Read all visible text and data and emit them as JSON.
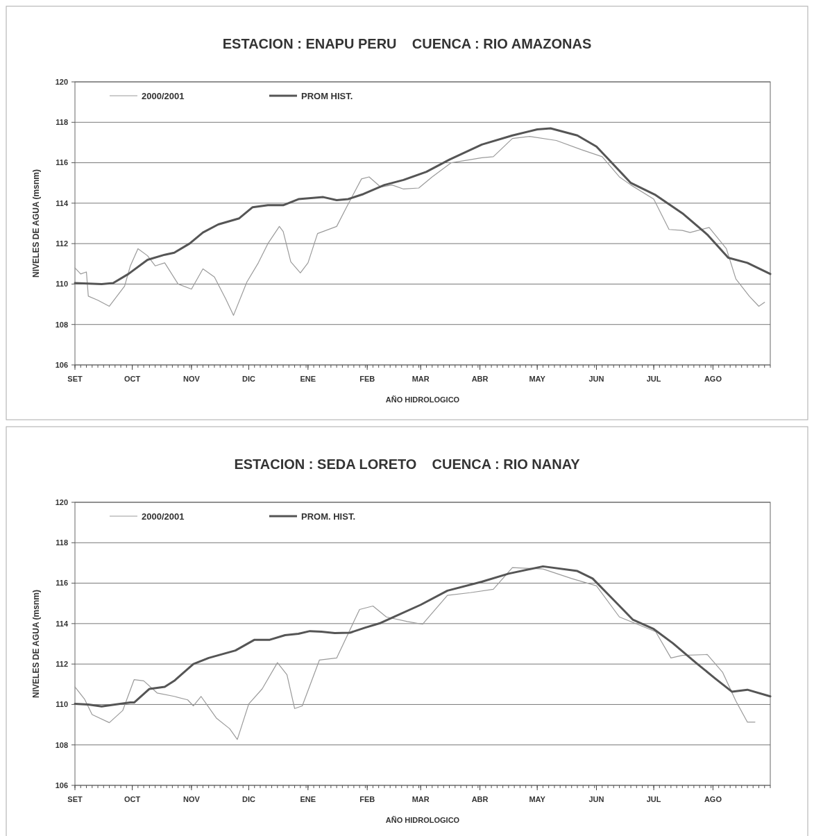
{
  "chart_data": [
    {
      "type": "line",
      "title": "ESTACION : ENAPU PERU    CUENCA : RIO AMAZONAS",
      "xlabel": "AÑO HIDROLOGICO",
      "ylabel": "NIVELES DE AGUA (msnm)",
      "xlim": [
        "2000-09-01",
        "2001-08-31"
      ],
      "xticks": [
        {
          "value": "2000-09-01",
          "label": "SET"
        },
        {
          "value": "2000-10-01",
          "label": "OCT"
        },
        {
          "value": "2000-11-01",
          "label": "NOV"
        },
        {
          "value": "2000-12-01",
          "label": "DIC"
        },
        {
          "value": "2001-01-01",
          "label": "ENE"
        },
        {
          "value": "2001-02-01",
          "label": "FEB"
        },
        {
          "value": "2001-03-01",
          "label": "MAR"
        },
        {
          "value": "2001-04-01",
          "label": "ABR"
        },
        {
          "value": "2001-05-01",
          "label": "MAY"
        },
        {
          "value": "2001-06-01",
          "label": "JUN"
        },
        {
          "value": "2001-07-01",
          "label": "JUL"
        },
        {
          "value": "2001-08-01",
          "label": "AGO"
        }
      ],
      "ylim": [
        106,
        120
      ],
      "yticks": [
        106,
        108,
        110,
        112,
        114,
        116,
        118,
        120
      ],
      "grid": "y",
      "legend": "top left",
      "marker": "none",
      "line_style": "solid",
      "series": [
        {
          "name": "2000/2001",
          "color": "#9a9a9a",
          "x": [
            "2000-09-01",
            "2000-09-04",
            "2000-09-07",
            "2000-09-08",
            "2000-09-13",
            "2000-09-19",
            "2000-09-27",
            "2000-09-30",
            "2000-10-04",
            "2000-10-09",
            "2000-10-13",
            "2000-10-18",
            "2000-10-25",
            "2000-11-01",
            "2000-11-07",
            "2000-11-13",
            "2000-11-19",
            "2000-11-23",
            "2000-11-30",
            "2000-12-06",
            "2000-12-11",
            "2000-12-17",
            "2000-12-19",
            "2000-12-23",
            "2000-12-28",
            "2001-01-01",
            "2001-01-06",
            "2001-01-16",
            "2001-01-22",
            "2001-01-29",
            "2001-02-02",
            "2001-02-08",
            "2001-02-14",
            "2001-02-20",
            "2001-02-28",
            "2001-03-07",
            "2001-03-17",
            "2001-04-02",
            "2001-04-08",
            "2001-04-18",
            "2001-04-27",
            "2001-05-11",
            "2001-05-24",
            "2001-06-04",
            "2001-06-13",
            "2001-06-19",
            "2001-07-01",
            "2001-07-09",
            "2001-07-16",
            "2001-07-20",
            "2001-07-30",
            "2001-08-08",
            "2001-08-13",
            "2001-08-20",
            "2001-08-25",
            "2001-08-28"
          ],
          "values": [
            110.8,
            110.5,
            110.6,
            109.4,
            109.2,
            108.9,
            109.9,
            110.9,
            111.75,
            111.4,
            110.9,
            111.05,
            110.0,
            109.75,
            110.75,
            110.35,
            109.25,
            108.45,
            110.1,
            111.05,
            112.0,
            112.85,
            112.6,
            111.1,
            110.55,
            111.05,
            112.5,
            112.85,
            113.95,
            115.2,
            115.3,
            114.8,
            114.9,
            114.7,
            114.75,
            115.3,
            116.0,
            116.25,
            116.3,
            117.2,
            117.3,
            117.1,
            116.65,
            116.3,
            115.3,
            114.9,
            114.2,
            112.7,
            112.65,
            112.55,
            112.8,
            111.75,
            110.25,
            109.4,
            108.9,
            109.1
          ]
        },
        {
          "name": "PROM HIST.",
          "color": "#555555",
          "x": [
            "2000-09-01",
            "2000-09-15",
            "2000-09-21",
            "2000-09-29",
            "2000-10-09",
            "2000-10-18",
            "2000-10-23",
            "2000-10-31",
            "2000-11-07",
            "2000-11-15",
            "2000-11-26",
            "2000-12-03",
            "2000-12-11",
            "2000-12-19",
            "2000-12-27",
            "2001-01-09",
            "2001-01-16",
            "2001-01-22",
            "2001-01-30",
            "2001-02-10",
            "2001-02-20",
            "2001-03-04",
            "2001-03-16",
            "2001-04-02",
            "2001-04-18",
            "2001-05-01",
            "2001-05-08",
            "2001-05-22",
            "2001-06-01",
            "2001-06-06",
            "2001-06-19",
            "2001-07-02",
            "2001-07-16",
            "2001-07-29",
            "2001-08-09",
            "2001-08-19",
            "2001-08-31"
          ],
          "values": [
            110.05,
            110.0,
            110.05,
            110.5,
            111.2,
            111.45,
            111.55,
            112.0,
            112.55,
            112.95,
            113.25,
            113.8,
            113.9,
            113.9,
            114.2,
            114.3,
            114.15,
            114.2,
            114.45,
            114.9,
            115.15,
            115.55,
            116.15,
            116.9,
            117.35,
            117.65,
            117.7,
            117.35,
            116.8,
            116.3,
            115.0,
            114.4,
            113.5,
            112.45,
            111.3,
            111.05,
            110.5
          ]
        }
      ]
    },
    {
      "type": "line",
      "title": "ESTACION : SEDA LORETO    CUENCA : RIO NANAY",
      "xlabel": "AÑO HIDROLOGICO",
      "ylabel": "NIVELES DE AGUA (msnm)",
      "xlim": [
        "2000-09-01",
        "2001-08-31"
      ],
      "xticks": [
        {
          "value": "2000-09-01",
          "label": "SET"
        },
        {
          "value": "2000-10-01",
          "label": "OCT"
        },
        {
          "value": "2000-11-01",
          "label": "NOV"
        },
        {
          "value": "2000-12-01",
          "label": "DIC"
        },
        {
          "value": "2001-01-01",
          "label": "ENE"
        },
        {
          "value": "2001-02-01",
          "label": "FEB"
        },
        {
          "value": "2001-03-01",
          "label": "MAR"
        },
        {
          "value": "2001-04-01",
          "label": "ABR"
        },
        {
          "value": "2001-05-01",
          "label": "MAY"
        },
        {
          "value": "2001-06-01",
          "label": "JUN"
        },
        {
          "value": "2001-07-01",
          "label": "JUL"
        },
        {
          "value": "2001-08-01",
          "label": "AGO"
        }
      ],
      "ylim": [
        106,
        120
      ],
      "yticks": [
        106,
        108,
        110,
        112,
        114,
        116,
        118,
        120
      ],
      "grid": "y",
      "legend": "top left",
      "marker": "none",
      "line_style": "solid",
      "series": [
        {
          "name": "2000/2001",
          "color": "#9a9a9a",
          "x": [
            "2000-09-01",
            "2000-09-06",
            "2000-09-10",
            "2000-09-19",
            "2000-09-26",
            "2000-10-02",
            "2000-10-07",
            "2000-10-14",
            "2000-10-23",
            "2000-10-30",
            "2000-11-02",
            "2000-11-06",
            "2000-11-14",
            "2000-11-21",
            "2000-11-25",
            "2000-12-01",
            "2000-12-08",
            "2000-12-16",
            "2000-12-21",
            "2000-12-25",
            "2000-12-29",
            "2001-01-07",
            "2001-01-16",
            "2001-01-28",
            "2001-02-04",
            "2001-02-11",
            "2001-02-22",
            "2001-03-02",
            "2001-03-15",
            "2001-03-27",
            "2001-04-08",
            "2001-04-18",
            "2001-05-04",
            "2001-05-19",
            "2001-06-01",
            "2001-06-13",
            "2001-07-02",
            "2001-07-10",
            "2001-07-16",
            "2001-07-29",
            "2001-08-06",
            "2001-08-13",
            "2001-08-19",
            "2001-08-23"
          ],
          "values": [
            110.87,
            110.27,
            109.5,
            109.1,
            109.7,
            111.23,
            111.17,
            110.57,
            110.4,
            110.23,
            109.93,
            110.4,
            109.33,
            108.8,
            108.27,
            110.03,
            110.77,
            112.07,
            111.47,
            109.8,
            109.93,
            112.2,
            112.3,
            114.7,
            114.87,
            114.33,
            114.1,
            113.97,
            115.4,
            115.53,
            115.7,
            116.77,
            116.7,
            116.23,
            115.87,
            114.33,
            113.6,
            112.3,
            112.43,
            112.47,
            111.6,
            110.17,
            109.13,
            109.13
          ]
        },
        {
          "name": "PROM. HIST.",
          "color": "#555555",
          "x": [
            "2000-09-01",
            "2000-09-08",
            "2000-09-15",
            "2000-09-22",
            "2000-09-30",
            "2000-10-02",
            "2000-10-10",
            "2000-10-18",
            "2000-10-23",
            "2000-11-02",
            "2000-11-10",
            "2000-11-24",
            "2000-12-04",
            "2000-12-12",
            "2000-12-20",
            "2000-12-27",
            "2001-01-02",
            "2001-01-08",
            "2001-01-15",
            "2001-01-23",
            "2001-01-31",
            "2001-02-08",
            "2001-02-15",
            "2001-03-01",
            "2001-03-15",
            "2001-04-02",
            "2001-04-16",
            "2001-05-04",
            "2001-05-22",
            "2001-05-30",
            "2001-06-10",
            "2001-06-20",
            "2001-07-01",
            "2001-07-11",
            "2001-07-23",
            "2001-08-02",
            "2001-08-11",
            "2001-08-19",
            "2001-08-31"
          ],
          "values": [
            110.03,
            110.0,
            109.9,
            110.0,
            110.1,
            110.1,
            110.77,
            110.87,
            111.17,
            112.0,
            112.3,
            112.67,
            113.2,
            113.2,
            113.43,
            113.5,
            113.63,
            113.6,
            113.53,
            113.55,
            113.8,
            114.03,
            114.33,
            114.93,
            115.63,
            116.07,
            116.47,
            116.83,
            116.6,
            116.23,
            115.17,
            114.2,
            113.73,
            113.03,
            112.07,
            111.3,
            110.63,
            110.73,
            110.4
          ]
        }
      ]
    }
  ]
}
